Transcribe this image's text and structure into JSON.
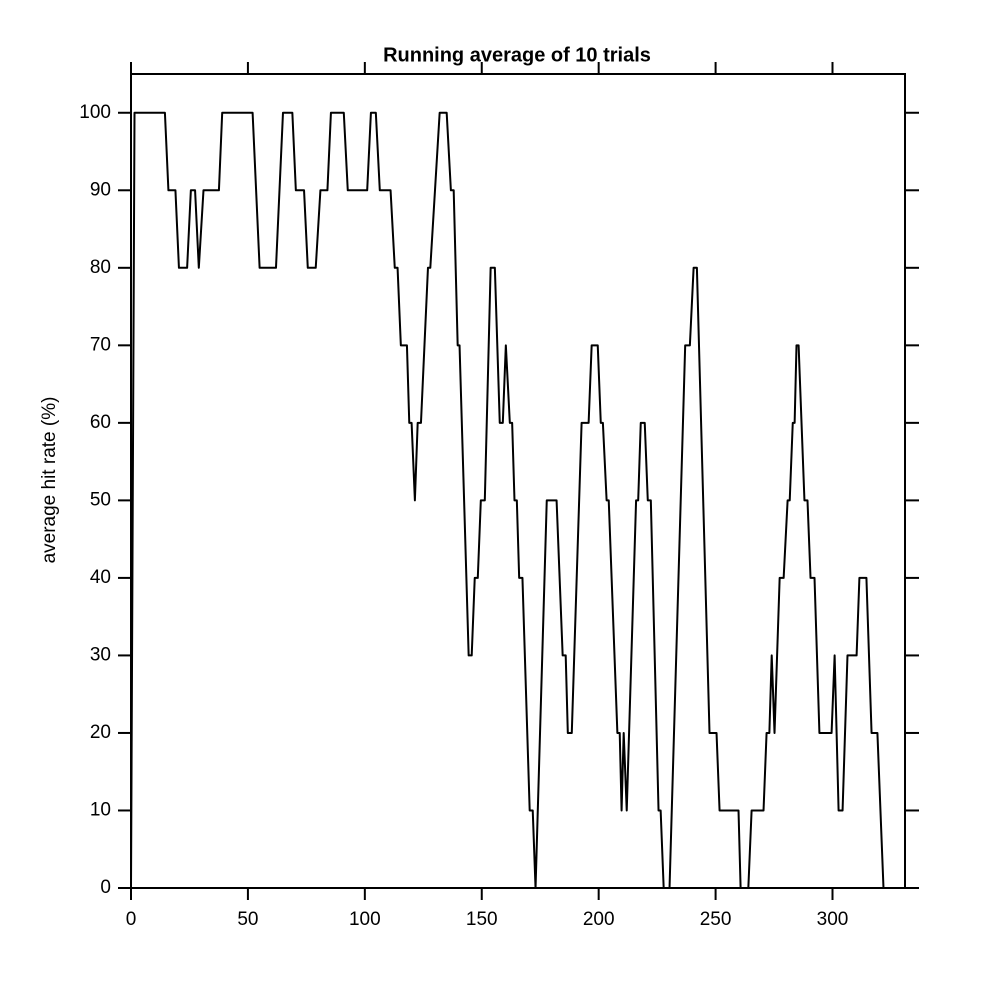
{
  "chart_data": {
    "type": "line",
    "title": "Running average of 10 trials",
    "ylabel": "average hit rate (%)",
    "color": "#000000",
    "xlim": [
      0,
      331
    ],
    "ylim": [
      0,
      105
    ],
    "xticks": [
      0,
      50,
      100,
      150,
      200,
      250,
      300
    ],
    "yticks": [
      0,
      10,
      20,
      30,
      40,
      50,
      60,
      70,
      80,
      90,
      100
    ],
    "x": [
      0,
      1.5,
      14.5,
      16,
      19,
      20.5,
      24,
      25.6,
      27.4,
      29,
      31,
      37.6,
      39,
      52,
      55,
      62,
      65,
      69,
      70.5,
      74,
      75.6,
      79,
      81,
      84,
      85.5,
      91,
      92.7,
      101,
      102.6,
      104.7,
      106.4,
      111,
      112.8,
      114,
      115.4,
      118,
      119,
      120,
      121.4,
      122.6,
      124,
      127,
      128,
      130,
      132,
      135,
      136.8,
      138,
      139.7,
      140.5,
      144.4,
      145.7,
      147,
      148.3,
      149.6,
      151.3,
      153.8,
      155.6,
      157.7,
      159,
      160.3,
      162,
      163,
      164,
      165,
      166,
      167.4,
      170.5,
      171.8,
      173,
      177.8,
      182,
      184.6,
      185.9,
      186.8,
      188.5,
      192.7,
      195.7,
      197,
      199.6,
      200.9,
      201.8,
      203.4,
      204.3,
      208,
      209,
      209.8,
      210.7,
      212,
      216,
      216.9,
      218,
      219.7,
      221,
      222.3,
      225.6,
      226.5,
      227.8,
      230.3,
      237,
      239,
      240.6,
      242,
      247.4,
      250.4,
      251.7,
      259.8,
      260.7,
      264,
      265.4,
      270.5,
      271.8,
      273,
      274,
      275.2,
      277.4,
      279.1,
      280.8,
      281.7,
      283,
      283.8,
      284.6,
      285.5,
      288,
      289.3,
      290.6,
      292.3,
      294.4,
      299.6,
      300.9,
      302.6,
      304.3,
      306.4,
      310.3,
      311.5,
      314.5,
      316.7,
      319.2,
      321.8
    ],
    "y": [
      0,
      100,
      100,
      90,
      90,
      80,
      80,
      90,
      90,
      80,
      90,
      90,
      100,
      100,
      80,
      80,
      100,
      100,
      90,
      90,
      80,
      80,
      90,
      90,
      100,
      100,
      90,
      90,
      100,
      100,
      90,
      90,
      80,
      80,
      70,
      70,
      60,
      60,
      50,
      60,
      60,
      80,
      80,
      90,
      100,
      100,
      90,
      90,
      70,
      70,
      30,
      30,
      40,
      40,
      50,
      50,
      80,
      80,
      60,
      60,
      70,
      60,
      60,
      50,
      50,
      40,
      40,
      10,
      10,
      0,
      50,
      50,
      30,
      30,
      20,
      20,
      60,
      60,
      70,
      70,
      60,
      60,
      50,
      50,
      20,
      20,
      10,
      20,
      10,
      50,
      50,
      60,
      60,
      50,
      50,
      10,
      10,
      0,
      0,
      70,
      70,
      80,
      80,
      20,
      20,
      10,
      10,
      0,
      0,
      10,
      10,
      20,
      20,
      30,
      20,
      40,
      40,
      50,
      50,
      60,
      60,
      70,
      70,
      50,
      50,
      40,
      40,
      20,
      20,
      30,
      10,
      10,
      30,
      30,
      40,
      40,
      20,
      20,
      0
    ]
  }
}
